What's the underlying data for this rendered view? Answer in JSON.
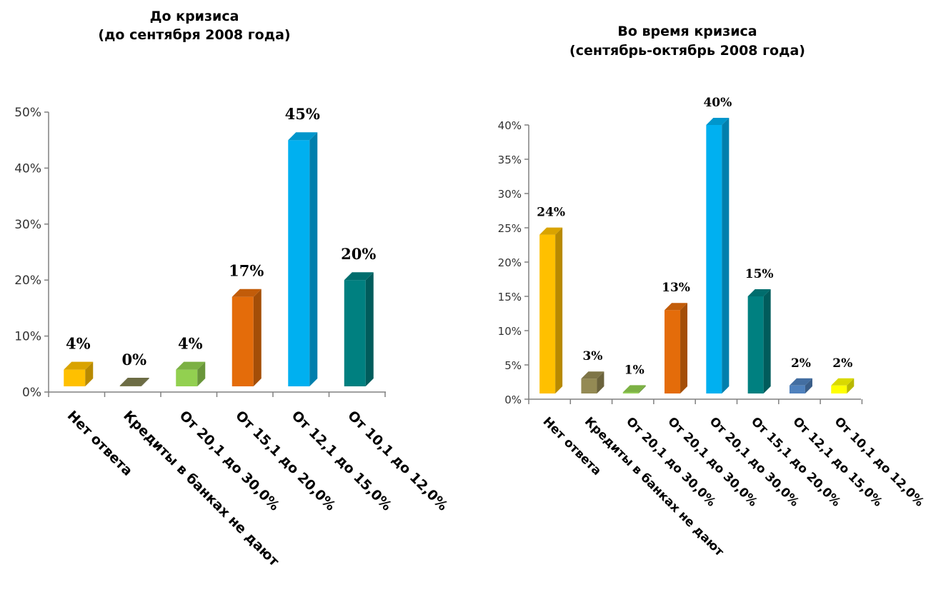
{
  "chart_data": [
    {
      "type": "bar",
      "title": [
        "До кризиса",
        "(до сентября 2008 года)"
      ],
      "categories": [
        "Нет ответа",
        "Кредиты в банках не дают",
        "От 20,1 до 30,0%",
        "От 15,1 до 20,0%",
        "От 12,1 до 15,0%",
        "От 10,1 до 12,0%"
      ],
      "values": [
        4,
        0,
        4,
        17,
        45,
        20
      ],
      "value_labels": [
        "4%",
        "0%",
        "4%",
        "17%",
        "45%",
        "20%"
      ],
      "colors": [
        "#FFC000",
        "#7F7F50",
        "#92D050",
        "#E46C0A",
        "#00B0F0",
        "#008080"
      ],
      "ylim": [
        0,
        50
      ],
      "yticks": [
        0,
        10,
        20,
        30,
        40,
        50
      ],
      "ytick_labels": [
        "0%",
        "10%",
        "20%",
        "30%",
        "40%",
        "50%"
      ],
      "grid": false,
      "legend": "none"
    },
    {
      "type": "bar",
      "title": [
        "Во время кризиса",
        "(сентябрь-октябрь 2008 года)"
      ],
      "categories": [
        "Нет ответа",
        "Кредиты в банках не дают",
        "От 20,1 до 30,0%",
        "От 20,1 до 30,0%",
        "От 20,1 до 30,0%",
        "От 15,1 до 20,0%",
        "От 12,1 до 15,0%",
        "От 10,1 до 12,0%"
      ],
      "values": [
        24,
        3,
        1,
        13,
        40,
        15,
        2,
        2
      ],
      "value_labels": [
        "24%",
        "3%",
        "1%",
        "13%",
        "40%",
        "15%",
        "2%",
        "2%"
      ],
      "colors": [
        "#FFC000",
        "#948A54",
        "#92D050",
        "#E46C0A",
        "#00B0F0",
        "#008080",
        "#4F81BD",
        "#FFFF00"
      ],
      "ylim": [
        0,
        40
      ],
      "yticks": [
        0,
        5,
        10,
        15,
        20,
        25,
        30,
        35,
        40
      ],
      "ytick_labels": [
        "0%",
        "5%",
        "10%",
        "15%",
        "20%",
        "25%",
        "30%",
        "35%",
        "40%"
      ],
      "grid": false,
      "legend": "none"
    }
  ]
}
